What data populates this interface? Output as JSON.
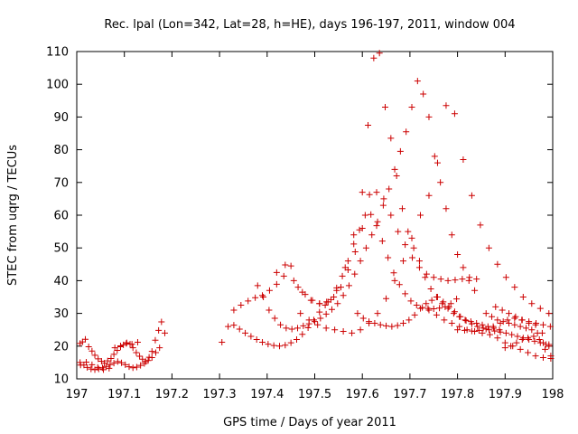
{
  "chart_data": {
    "type": "scatter",
    "title": "Rec. lpal (Lon=342, Lat=28, h=HE), days 196-197, 2011, window 004",
    "xlabel": "GPS time / Days of year 2011",
    "ylabel": "STEC from uqrg / TECUs",
    "xlim": [
      197,
      198
    ],
    "ylim": [
      10,
      110
    ],
    "xticks": [
      "197",
      "197.1",
      "197.2",
      "197.3",
      "197.4",
      "197.5",
      "197.6",
      "197.7",
      "197.8",
      "197.9",
      "198"
    ],
    "yticks": [
      "10",
      "20",
      "30",
      "40",
      "50",
      "60",
      "70",
      "80",
      "90",
      "100",
      "110"
    ],
    "grid": false,
    "legend": "none",
    "marker": "+",
    "color": "#cc0000",
    "series": [
      {
        "x": [
          197.007,
          197.012,
          197.018,
          197.025,
          197.032,
          197.038,
          197.045,
          197.052,
          197.058,
          197.065,
          197.072,
          197.078,
          197.085,
          197.092,
          197.098,
          197.105,
          197.112,
          197.118,
          197.125,
          197.132,
          197.138,
          197.145,
          197.152,
          197.158,
          197.165,
          197.172,
          197.178,
          197.185,
          197.007,
          197.015,
          197.022,
          197.03,
          197.038,
          197.046,
          197.054,
          197.062,
          197.07,
          197.078,
          197.086,
          197.094,
          197.102,
          197.11,
          197.118,
          197.126,
          197.134,
          197.142,
          197.15,
          197.158,
          197.166,
          197.174,
          197.008,
          197.02,
          197.032,
          197.044,
          197.056,
          197.068,
          197.08,
          197.092,
          197.104,
          197.116,
          197.128
        ],
        "y": [
          20.8,
          21.3,
          22.1,
          19.8,
          18.5,
          17.2,
          16.1,
          15.4,
          14.8,
          15.5,
          16.2,
          17.5,
          18.7,
          19.8,
          20.4,
          21.0,
          20.6,
          19.5,
          18.0,
          16.9,
          16.0,
          15.3,
          16.6,
          18.4,
          21.8,
          24.8,
          27.4,
          24.0,
          15.0,
          14.2,
          13.5,
          13.0,
          12.8,
          13.0,
          13.4,
          13.8,
          14.3,
          14.8,
          15.3,
          14.9,
          14.3,
          13.7,
          13.4,
          13.6,
          14.1,
          14.7,
          15.6,
          16.5,
          18.0,
          19.5,
          14.2,
          15.1,
          14.3,
          13.5,
          12.8,
          13.2,
          19.5,
          20.1,
          20.8,
          20.6,
          21.2
        ]
      },
      {
        "x": [
          197.305,
          197.318,
          197.33,
          197.342,
          197.354,
          197.366,
          197.378,
          197.39,
          197.402,
          197.414,
          197.426,
          197.438,
          197.45,
          197.462,
          197.474,
          197.486,
          197.498,
          197.51,
          197.522,
          197.534,
          197.546,
          197.558,
          197.57,
          197.582,
          197.594,
          197.606,
          197.618,
          197.63,
          197.642,
          197.654,
          197.666,
          197.678,
          197.69,
          197.702,
          197.714,
          197.726,
          197.738,
          197.75,
          197.762,
          197.774,
          197.786,
          197.798
        ],
        "y": [
          21.2,
          26.0,
          26.4,
          25.2,
          24.0,
          23.0,
          22.0,
          21.2,
          20.6,
          20.2,
          20.0,
          20.3,
          21.0,
          22.0,
          23.6,
          25.6,
          28.0,
          30.4,
          32.5,
          34.2,
          37.8,
          41.4,
          46.0,
          51.2,
          55.5,
          60.0,
          60.2,
          56.8,
          52.1,
          47.0,
          42.4,
          38.8,
          36.0,
          33.8,
          32.5,
          31.8,
          31.5,
          31.4,
          31.6,
          32.0,
          33.0,
          34.4
        ]
      },
      {
        "x": [
          197.33,
          197.345,
          197.36,
          197.375,
          197.39,
          197.405,
          197.42,
          197.435,
          197.45,
          197.465,
          197.48,
          197.495,
          197.51,
          197.525,
          197.54,
          197.555,
          197.57,
          197.585,
          197.6,
          197.615,
          197.63,
          197.645,
          197.66,
          197.675,
          197.69,
          197.705,
          197.72,
          197.735,
          197.75,
          197.765,
          197.78,
          197.795,
          197.81,
          197.825,
          197.84
        ],
        "y": [
          31.0,
          32.5,
          33.8,
          34.8,
          35.5,
          37.0,
          38.9,
          41.4,
          44.5,
          38.0,
          35.8,
          34.0,
          33.0,
          33.5,
          35.0,
          38.0,
          43.3,
          48.8,
          56.0,
          66.3,
          67.0,
          65.0,
          60.0,
          55.0,
          51.0,
          47.0,
          44.0,
          42.0,
          41.0,
          40.5,
          40.0,
          40.2,
          40.5,
          41.0,
          40.5
        ]
      },
      {
        "x": [
          197.38,
          197.392,
          197.404,
          197.416,
          197.428,
          197.44,
          197.452,
          197.464,
          197.476,
          197.488,
          197.5,
          197.512,
          197.524,
          197.536,
          197.548,
          197.56,
          197.572,
          197.584,
          197.596,
          197.608,
          197.62,
          197.632,
          197.644,
          197.656,
          197.668,
          197.68,
          197.692,
          197.704,
          197.716,
          197.728,
          197.74,
          197.752,
          197.764,
          197.776,
          197.788,
          197.8,
          197.812,
          197.824,
          197.836
        ],
        "y": [
          38.5,
          35.0,
          31.0,
          28.5,
          26.5,
          25.5,
          25.2,
          25.5,
          26.2,
          26.8,
          27.5,
          28.5,
          29.8,
          31.2,
          33.0,
          35.5,
          38.5,
          42.0,
          46.0,
          50.0,
          54.0,
          58.0,
          63.0,
          68.0,
          74.0,
          79.5,
          85.5,
          93.0,
          101.0,
          97.0,
          90.0,
          78.0,
          70.0,
          62.0,
          54.0,
          48.0,
          44.0,
          40.0,
          37.0
        ]
      },
      {
        "x": [
          197.42,
          197.438,
          197.456,
          197.474,
          197.492,
          197.51,
          197.528,
          197.546,
          197.564,
          197.582,
          197.6,
          197.612,
          197.624,
          197.636,
          197.648,
          197.66,
          197.672,
          197.684,
          197.696,
          197.708,
          197.72,
          197.732,
          197.744,
          197.756,
          197.768,
          197.78,
          197.792,
          197.804,
          197.816,
          197.828,
          197.84,
          197.852,
          197.864,
          197.876,
          197.888
        ],
        "y": [
          42.5,
          44.8,
          40.0,
          36.5,
          34.0,
          33.0,
          33.5,
          37.0,
          44.0,
          54.0,
          67.0,
          87.5,
          108.0,
          109.5,
          93.0,
          83.5,
          72.0,
          62.0,
          55.0,
          50.0,
          46.0,
          41.0,
          37.5,
          35.0,
          33.0,
          31.5,
          30.0,
          29.0,
          28.0,
          27.5,
          27.0,
          26.5,
          26.0,
          25.5,
          25.0
        ]
      },
      {
        "x": [
          197.47,
          197.488,
          197.506,
          197.524,
          197.542,
          197.56,
          197.578,
          197.596,
          197.614,
          197.632,
          197.65,
          197.668,
          197.686,
          197.704,
          197.722,
          197.74,
          197.758,
          197.776,
          197.794,
          197.812,
          197.83,
          197.848,
          197.866,
          197.884,
          197.902,
          197.92,
          197.938,
          197.956,
          197.974,
          197.992
        ],
        "y": [
          30.0,
          28.0,
          26.5,
          25.5,
          25.0,
          24.5,
          24.0,
          25.0,
          27.0,
          30.0,
          34.5,
          40.0,
          46.0,
          53.0,
          60.0,
          66.0,
          76.0,
          93.5,
          91.0,
          77.0,
          66.0,
          57.0,
          50.0,
          45.0,
          41.0,
          38.0,
          35.0,
          33.0,
          31.5,
          30.0
        ]
      },
      {
        "x": [
          197.59,
          197.602,
          197.614,
          197.626,
          197.638,
          197.65,
          197.662,
          197.674,
          197.686,
          197.698,
          197.71,
          197.722,
          197.734,
          197.746,
          197.758,
          197.77,
          197.782,
          197.794,
          197.806,
          197.818,
          197.83,
          197.842,
          197.854,
          197.866,
          197.878,
          197.89,
          197.902,
          197.914,
          197.926,
          197.938,
          197.95,
          197.962,
          197.974,
          197.986
        ],
        "y": [
          30.0,
          28.5,
          27.5,
          27.0,
          26.5,
          26.2,
          26.0,
          26.3,
          27.0,
          28.0,
          29.5,
          31.5,
          33.0,
          34.0,
          35.0,
          33.5,
          32.0,
          30.5,
          29.0,
          27.8,
          26.8,
          26.0,
          25.5,
          25.0,
          24.6,
          24.3,
          24.0,
          23.5,
          23.0,
          22.5,
          22.0,
          21.5,
          21.0,
          20.5
        ]
      },
      {
        "x": [
          197.74,
          197.756,
          197.772,
          197.788,
          197.804,
          197.82,
          197.836,
          197.852,
          197.868,
          197.884,
          197.9,
          197.916,
          197.932,
          197.948,
          197.964,
          197.98,
          197.996
        ],
        "y": [
          31.0,
          29.5,
          28.0,
          27.0,
          26.0,
          25.0,
          24.5,
          24.0,
          23.5,
          22.5,
          21.0,
          20.0,
          19.0,
          18.0,
          17.0,
          16.5,
          16.2
        ]
      },
      {
        "x": [
          197.8,
          197.815,
          197.83,
          197.845,
          197.86,
          197.875,
          197.89,
          197.905,
          197.92,
          197.935,
          197.95,
          197.965,
          197.98,
          197.995
        ],
        "y": [
          25.0,
          24.8,
          24.6,
          24.8,
          25.2,
          26.0,
          27.0,
          28.0,
          28.5,
          28.0,
          27.5,
          27.0,
          26.5,
          26.0
        ]
      },
      {
        "x": [
          197.86,
          197.872,
          197.884,
          197.896,
          197.908,
          197.92,
          197.932,
          197.944,
          197.956,
          197.968,
          197.98,
          197.992
        ],
        "y": [
          30.0,
          29.0,
          28.0,
          27.5,
          27.0,
          26.5,
          26.0,
          25.5,
          25.0,
          24.0,
          21.0,
          20.0
        ]
      },
      {
        "x": [
          197.88,
          197.894,
          197.908,
          197.922,
          197.936,
          197.95,
          197.964,
          197.978,
          197.992
        ],
        "y": [
          32.0,
          31.0,
          30.0,
          29.0,
          28.0,
          27.0,
          26.5,
          24.0,
          20.5
        ]
      },
      {
        "x": [
          197.9,
          197.912,
          197.924,
          197.936,
          197.948,
          197.96,
          197.972,
          197.984,
          197.996
        ],
        "y": [
          19.5,
          20.0,
          21.0,
          22.0,
          22.5,
          23.0,
          22.0,
          19.0,
          17.0
        ]
      }
    ]
  }
}
